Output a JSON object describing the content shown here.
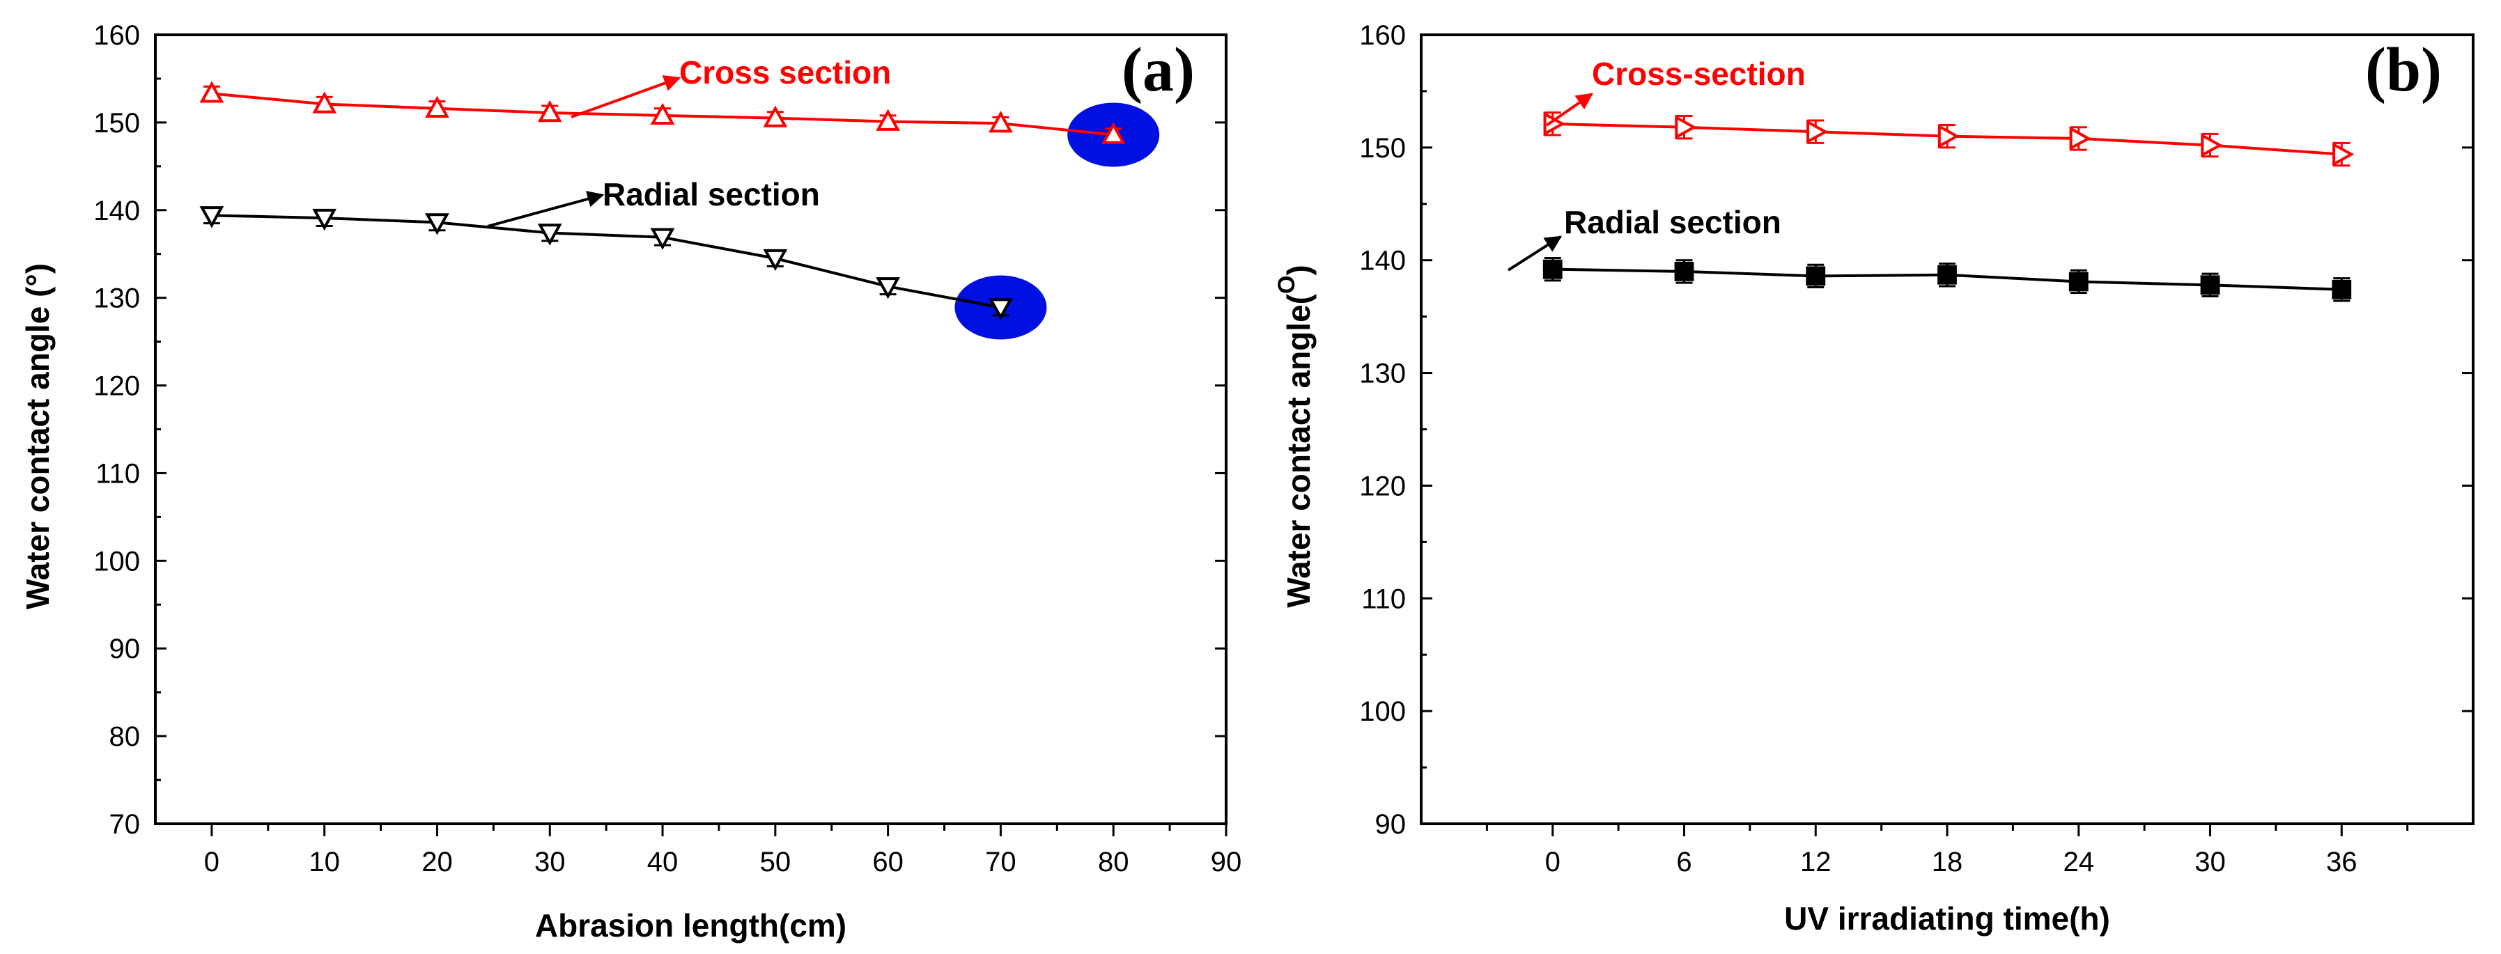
{
  "chart_data": [
    {
      "type": "line",
      "panel_label": "(a)",
      "title": "",
      "xlabel": "Abrasion length(cm)",
      "ylabel": "Water contact angle (°)",
      "xlim": [
        -5,
        90
      ],
      "ylim": [
        70,
        160
      ],
      "xticks": [
        0,
        10,
        20,
        30,
        40,
        50,
        60,
        70,
        80,
        90
      ],
      "yticks": [
        70,
        80,
        90,
        100,
        110,
        120,
        130,
        140,
        150,
        160
      ],
      "xtick_labels": [
        "0",
        "10",
        "20",
        "30",
        "40",
        "50",
        "60",
        "70",
        "80",
        "90"
      ],
      "ytick_labels": [
        "70",
        "80",
        "90",
        "100",
        "110",
        "120",
        "130",
        "140",
        "150",
        "160"
      ],
      "series": [
        {
          "name": "Cross section",
          "color": "#ff0000",
          "marker": "triangle-up",
          "x": [
            0,
            10,
            20,
            30,
            40,
            50,
            60,
            70,
            80
          ],
          "values": [
            153.3,
            152.1,
            151.6,
            151.1,
            150.8,
            150.5,
            150.1,
            149.9,
            148.6
          ],
          "error": [
            0.8,
            0.8,
            0.8,
            0.8,
            0.8,
            0.7,
            0.7,
            0.7,
            0.7
          ]
        },
        {
          "name": "Radial section",
          "color": "#000000",
          "marker": "triangle-down",
          "x": [
            0,
            10,
            20,
            30,
            40,
            50,
            60,
            70
          ],
          "values": [
            139.4,
            139.1,
            138.6,
            137.4,
            136.9,
            134.5,
            131.3,
            128.9
          ],
          "error": [
            0.9,
            0.9,
            0.9,
            0.9,
            0.9,
            0.9,
            0.9,
            0.9
          ]
        }
      ],
      "annotations": [
        {
          "text": "Cross section",
          "color": "#ff0000",
          "target_series": 0
        },
        {
          "text": "Radial section",
          "color": "#000000",
          "target_series": 1
        }
      ],
      "highlights": [
        {
          "x": 80,
          "y": 148.6,
          "color": "#0010e0"
        },
        {
          "x": 70,
          "y": 128.9,
          "color": "#0010e0"
        }
      ]
    },
    {
      "type": "line",
      "panel_label": "(b)",
      "title": "",
      "xlabel": "UV irradiating time(h)",
      "ylabel": "Water contact angle(",
      "ylabel_superscript": "O",
      "ylabel_suffix": ")",
      "xlim": [
        -6,
        42
      ],
      "ylim": [
        90,
        160
      ],
      "xticks": [
        0,
        6,
        12,
        18,
        24,
        30,
        36
      ],
      "yticks": [
        90,
        100,
        110,
        120,
        130,
        140,
        150,
        160
      ],
      "xtick_labels": [
        "0",
        "6",
        "12",
        "18",
        "24",
        "30",
        "36"
      ],
      "ytick_labels": [
        "90",
        "100",
        "110",
        "120",
        "130",
        "140",
        "150",
        "160"
      ],
      "series": [
        {
          "name": "Cross-section",
          "color": "#ff0000",
          "marker": "triangle-right",
          "x": [
            0,
            6,
            12,
            18,
            24,
            30,
            36
          ],
          "values": [
            152.1,
            151.8,
            151.4,
            151.0,
            150.8,
            150.2,
            149.4
          ],
          "error": [
            1.0,
            1.0,
            1.0,
            1.0,
            1.0,
            1.0,
            1.0
          ]
        },
        {
          "name": "Radial section",
          "color": "#000000",
          "marker": "square",
          "x": [
            0,
            6,
            12,
            18,
            24,
            30,
            36
          ],
          "values": [
            139.2,
            139.0,
            138.6,
            138.7,
            138.1,
            137.8,
            137.4
          ],
          "error": [
            1.0,
            1.0,
            1.0,
            1.0,
            1.0,
            1.0,
            1.0
          ]
        }
      ],
      "annotations": [
        {
          "text": "Cross-section",
          "color": "#ff0000",
          "target_series": 0
        },
        {
          "text": "Radial section",
          "color": "#000000",
          "target_series": 1
        }
      ]
    }
  ]
}
